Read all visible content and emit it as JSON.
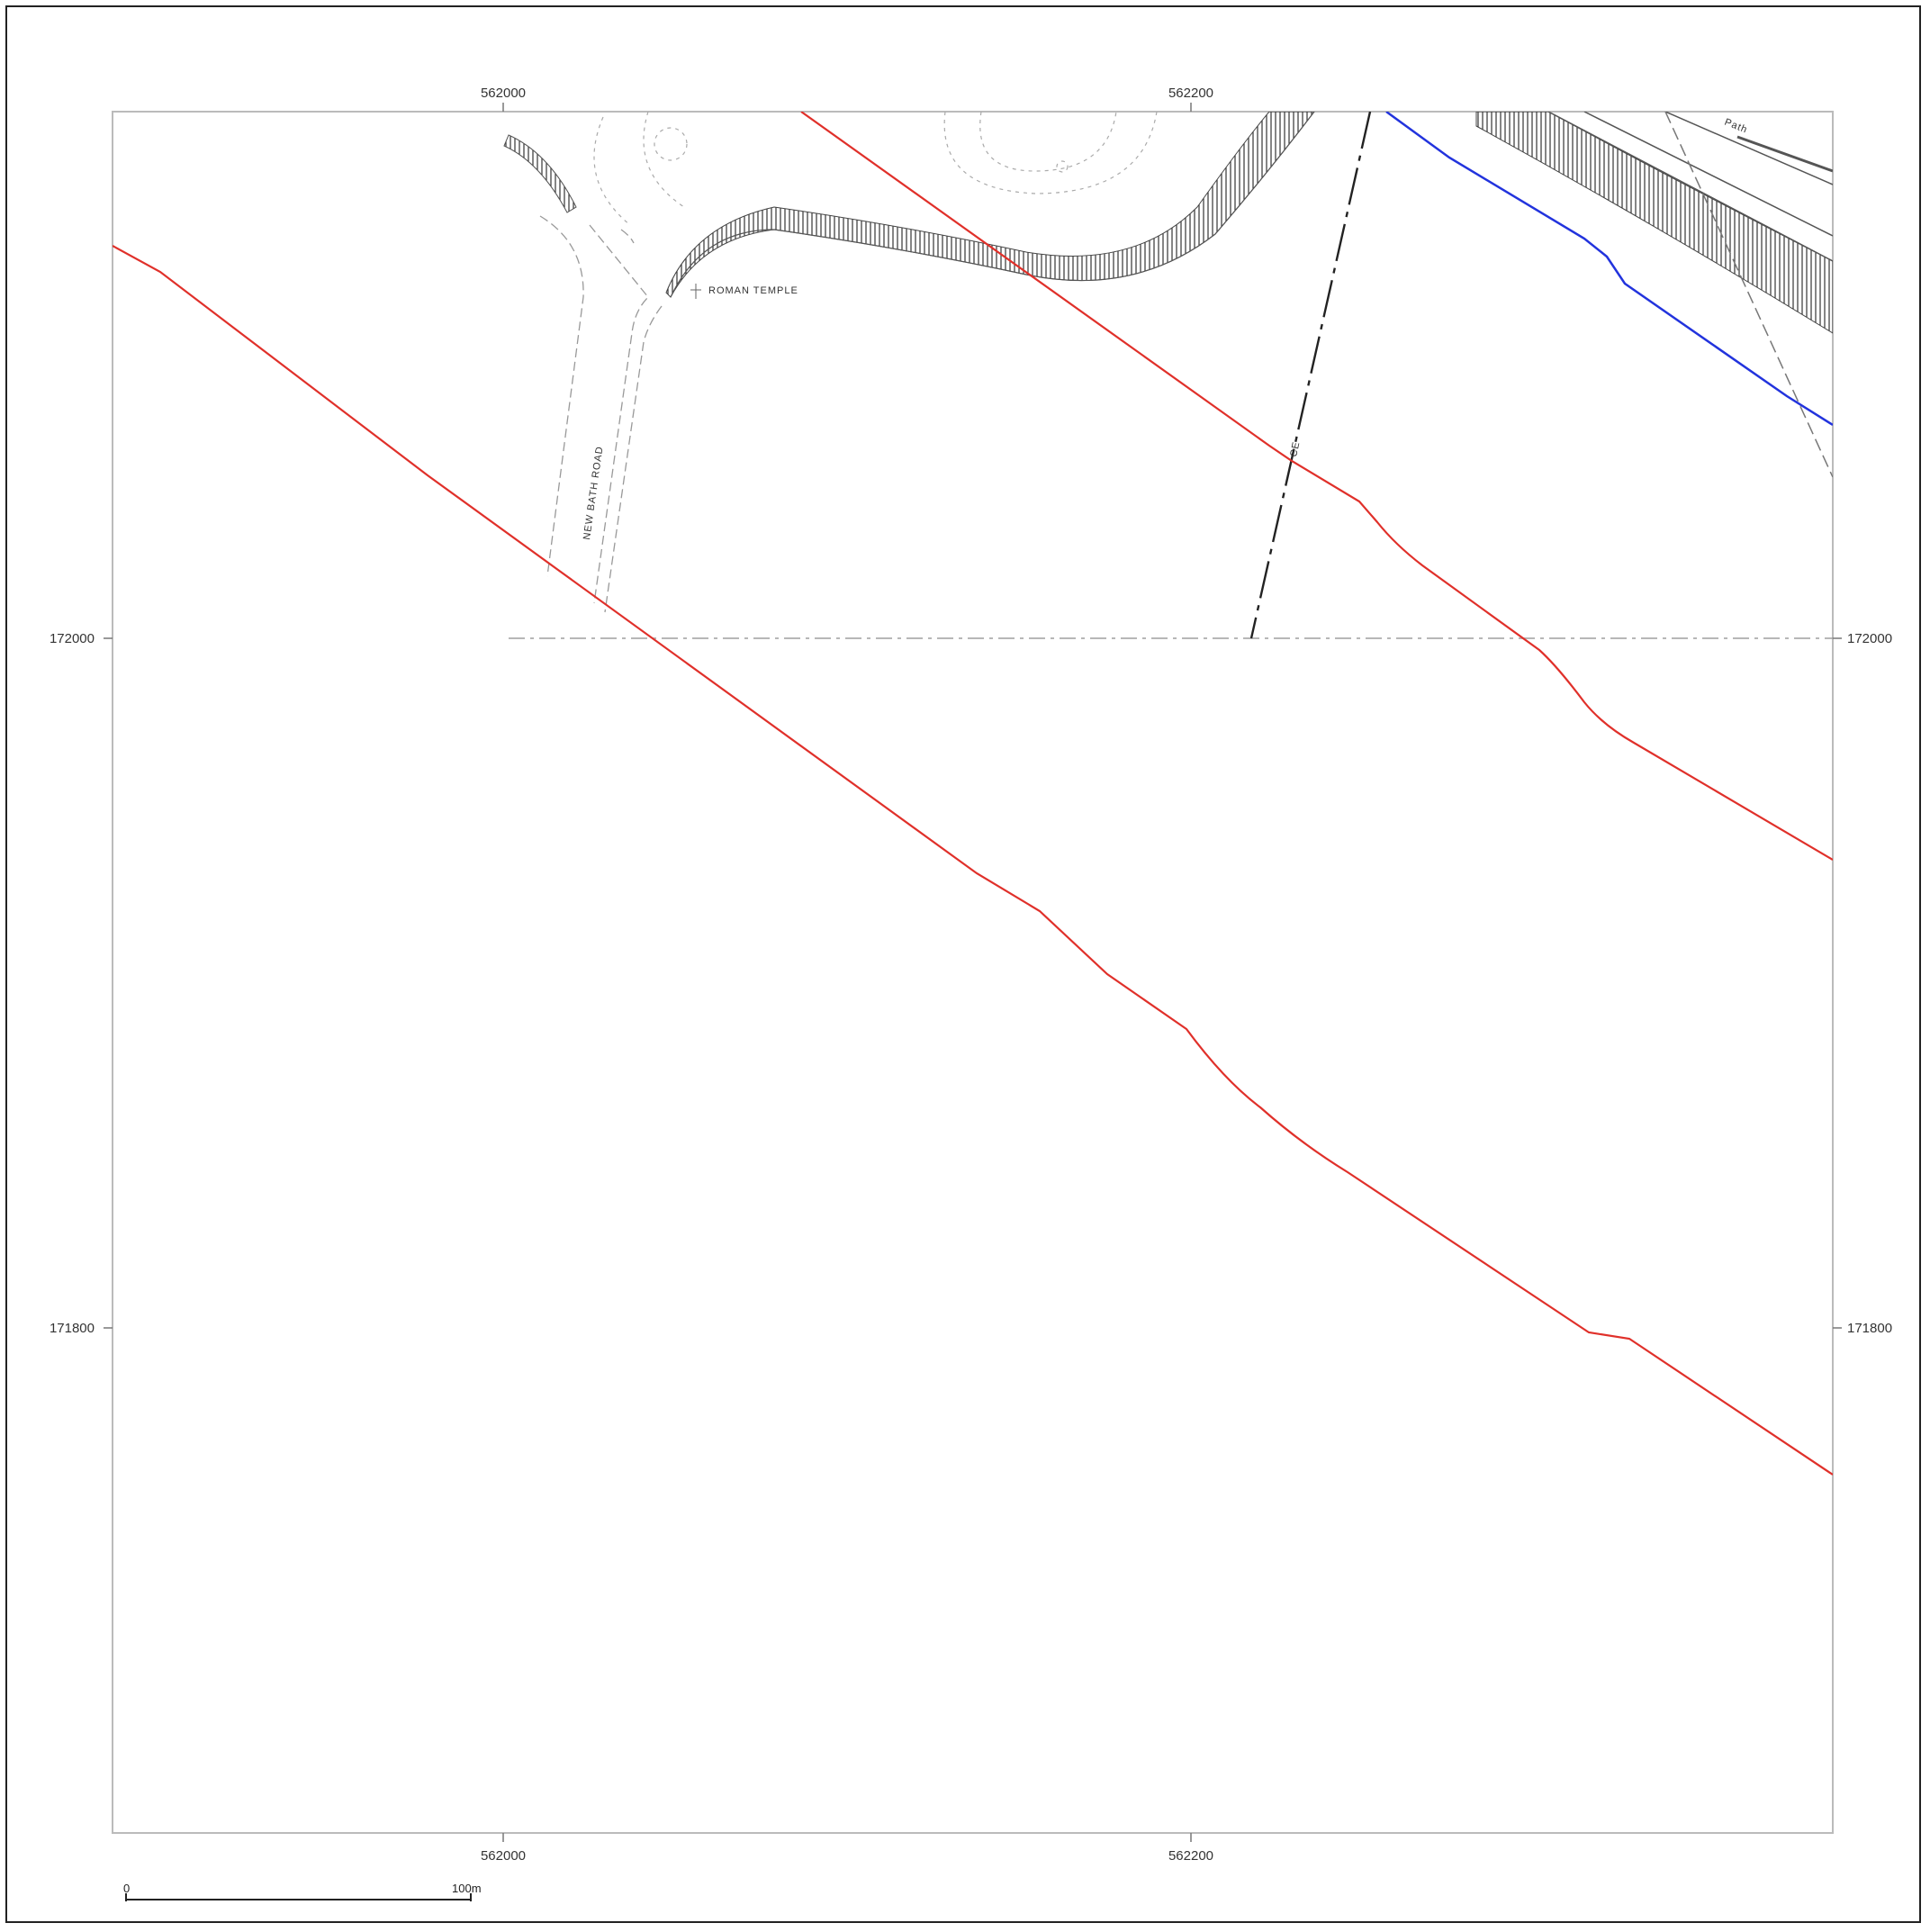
{
  "map": {
    "grid": {
      "eastings": [
        "562000",
        "562200"
      ],
      "northings": [
        "172000",
        "171800"
      ]
    },
    "features": {
      "roman_temple": "ROMAN TEMPLE",
      "road": "NEW BATH ROAD",
      "ce_label": "CE",
      "path_label": "Path"
    },
    "scale_bar": {
      "start": "0",
      "end": "100m"
    },
    "colors": {
      "red_line": "#e0302a",
      "blue_line": "#2233dd",
      "frame": "#222222",
      "map_border": "#bbbbbb",
      "hatch": "#333333"
    }
  }
}
